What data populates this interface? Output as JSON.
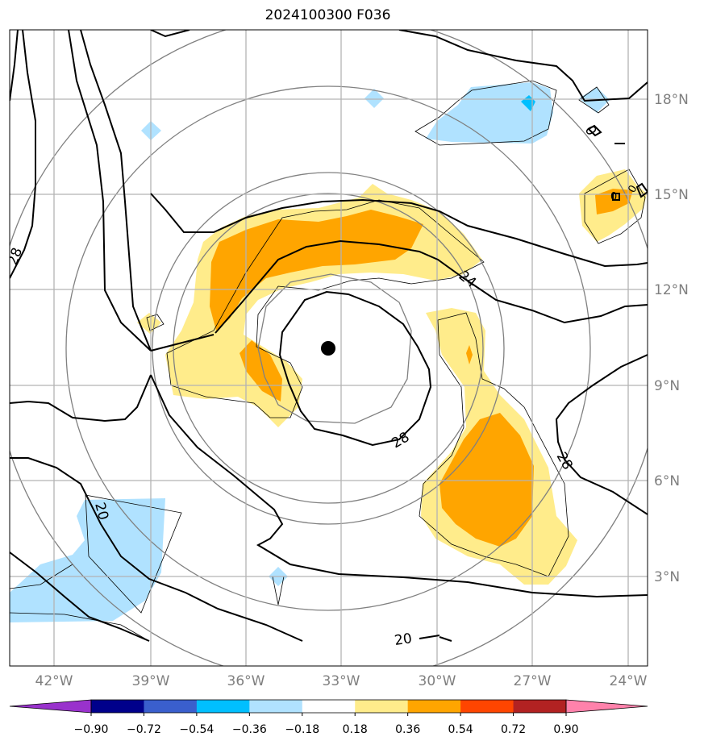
{
  "title": "2024100300 F036",
  "map": {
    "lon_labels": [
      "42°W",
      "39°W",
      "36°W",
      "33°W",
      "30°W",
      "27°W",
      "24°W"
    ],
    "lat_labels": [
      "18°N",
      "15°N",
      "12°N",
      "9°N",
      "6°N",
      "3°N"
    ],
    "contour_labels": [
      "28",
      "24",
      "28",
      "28",
      "20",
      "20",
      "0",
      "0",
      "0"
    ],
    "storm_center": {
      "lon": -33.4,
      "lat": 10.2
    }
  },
  "colorbar": {
    "ticks": [
      "−0.90",
      "−0.72",
      "−0.54",
      "−0.36",
      "−0.18",
      "0.18",
      "0.36",
      "0.54",
      "0.72",
      "0.90"
    ],
    "colors": [
      "#9932CC",
      "#00008B",
      "#3A5FCD",
      "#00BFFF",
      "#B0E2FF",
      "#FFFFFF",
      "#FFEC8B",
      "#FFA500",
      "#FF4500",
      "#B22222",
      "#FF82AB"
    ]
  }
}
